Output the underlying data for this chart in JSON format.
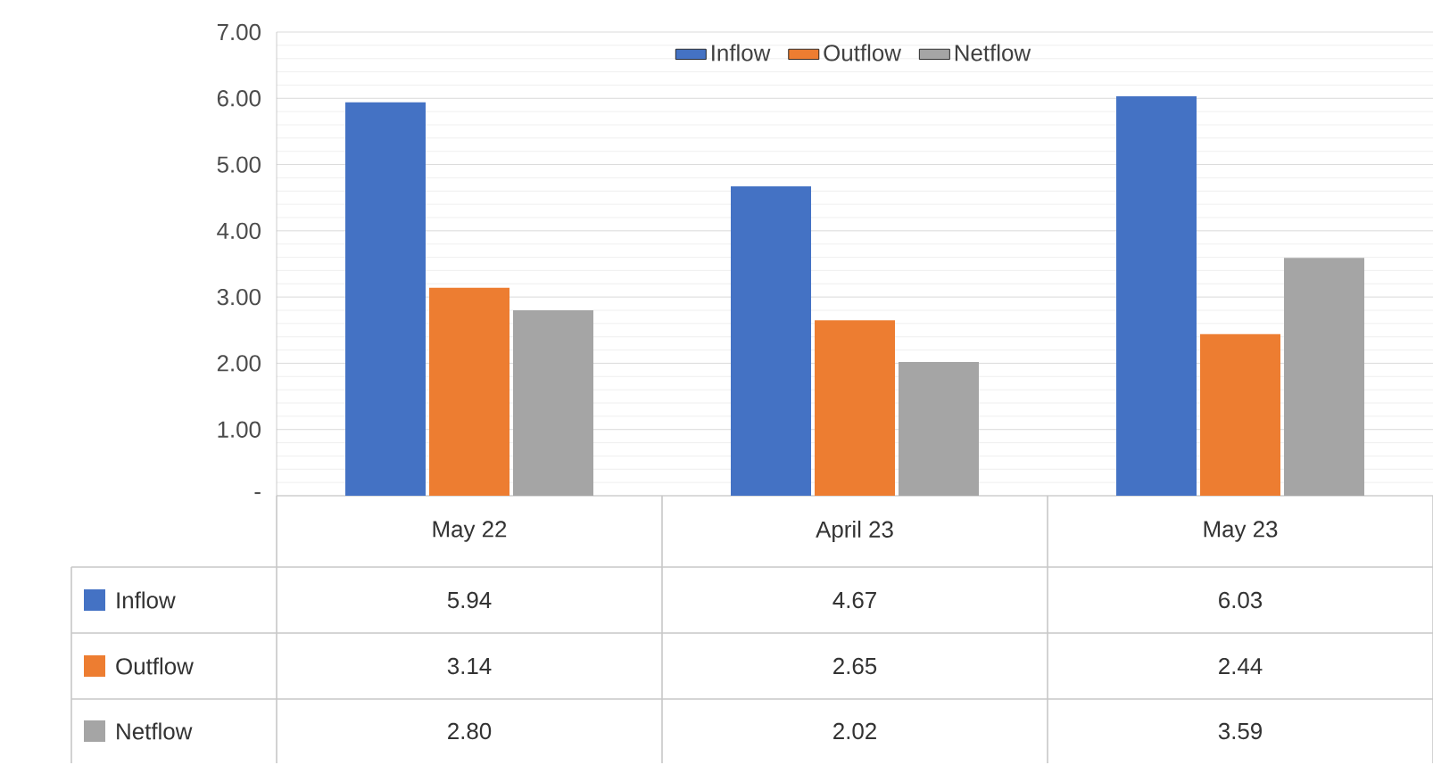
{
  "chart_data": {
    "type": "bar",
    "categories": [
      "May 22",
      "April 23",
      "May 23"
    ],
    "series": [
      {
        "name": "Inflow",
        "color": "#4472c4",
        "values": [
          5.94,
          4.67,
          6.03
        ],
        "value_labels": [
          "5.94",
          "4.67",
          "6.03"
        ]
      },
      {
        "name": "Outflow",
        "color": "#ed7d31",
        "values": [
          3.14,
          2.65,
          2.44
        ],
        "value_labels": [
          "3.14",
          "2.65",
          "2.44"
        ]
      },
      {
        "name": "Netflow",
        "color": "#a5a5a5",
        "values": [
          2.8,
          2.02,
          3.59
        ],
        "value_labels": [
          "2.80",
          "2.02",
          "3.59"
        ]
      }
    ],
    "ylim": [
      0,
      7
    ],
    "yticks": [
      {
        "value": 0,
        "label": "-"
      },
      {
        "value": 1,
        "label": "1.00"
      },
      {
        "value": 2,
        "label": "2.00"
      },
      {
        "value": 3,
        "label": "3.00"
      },
      {
        "value": 4,
        "label": "4.00"
      },
      {
        "value": 5,
        "label": "5.00"
      },
      {
        "value": 6,
        "label": "6.00"
      },
      {
        "value": 7,
        "label": "7.00"
      }
    ],
    "grid": "y",
    "legend": "top"
  }
}
